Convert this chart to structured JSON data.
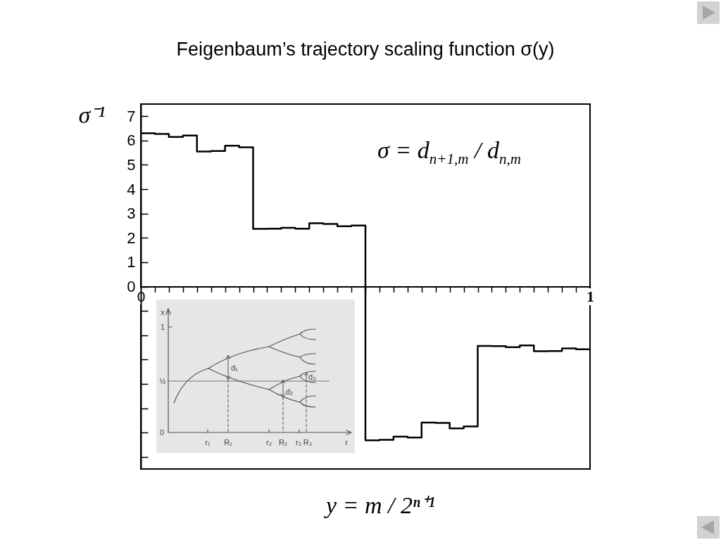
{
  "chart_data": {
    "type": "step",
    "title": "Feigenbaum’s trajectory scaling function σ(y)",
    "xlabel": "y = m / 2ⁿ⁺¹",
    "ylabel": "σ⁻¹",
    "x": [
      0,
      0.03125,
      0.0625,
      0.09375,
      0.125,
      0.15625,
      0.1875,
      0.21875,
      0.25,
      0.28125,
      0.3125,
      0.34375,
      0.375,
      0.40625,
      0.4375,
      0.46875,
      0.5,
      0.53125,
      0.5625,
      0.59375,
      0.625,
      0.65625,
      0.6875,
      0.71875,
      0.75,
      0.78125,
      0.8125,
      0.84375,
      0.875,
      0.90625,
      0.9375,
      0.96875,
      1
    ],
    "series": [
      {
        "color": "#000000",
        "values": [
          6.3,
          6.27,
          6.15,
          6.21,
          5.55,
          5.57,
          5.79,
          5.72,
          2.37,
          2.38,
          2.41,
          2.38,
          2.6,
          2.57,
          2.48,
          2.51,
          -6.32,
          -6.3,
          -6.17,
          -6.21,
          -5.59,
          -5.61,
          -5.83,
          -5.75,
          -2.44,
          -2.45,
          -2.49,
          -2.42,
          -2.66,
          -2.65,
          -2.54,
          -2.58,
          -2.58
        ]
      }
    ],
    "xlim": [
      0,
      1
    ],
    "ylim": [
      -7.5,
      7.5
    ],
    "xticks": [
      0,
      {
        "value": 0.03125,
        "label": null
      },
      {
        "value": 0.0625,
        "label": null
      },
      {
        "value": 0.09375,
        "label": null
      },
      {
        "value": 0.125,
        "label": null
      },
      {
        "value": 0.15625,
        "label": null
      },
      {
        "value": 0.1875,
        "label": null
      },
      {
        "value": 0.21875,
        "label": null
      },
      {
        "value": 0.25,
        "label": null
      },
      {
        "value": 0.28125,
        "label": null
      },
      {
        "value": 0.3125,
        "label": null
      },
      {
        "value": 0.34375,
        "label": null
      },
      {
        "value": 0.375,
        "label": null
      },
      {
        "value": 0.40625,
        "label": null
      },
      {
        "value": 0.4375,
        "label": null
      },
      {
        "value": 0.46875,
        "label": null
      },
      {
        "value": 0.5,
        "label": null
      },
      {
        "value": 0.53125,
        "label": null
      },
      {
        "value": 0.5625,
        "label": null
      },
      {
        "value": 0.59375,
        "label": null
      },
      {
        "value": 0.625,
        "label": null
      },
      {
        "value": 0.65625,
        "label": null
      },
      {
        "value": 0.6875,
        "label": null
      },
      {
        "value": 0.71875,
        "label": null
      },
      {
        "value": 0.75,
        "label": null
      },
      {
        "value": 0.78125,
        "label": null
      },
      {
        "value": 0.8125,
        "label": null
      },
      {
        "value": 0.84375,
        "label": null
      },
      {
        "value": 0.875,
        "label": null
      },
      {
        "value": 0.90625,
        "label": null
      },
      {
        "value": 0.9375,
        "label": null
      },
      {
        "value": 0.96875,
        "label": null
      },
      1
    ],
    "yticks": [
      {
        "value": -7,
        "label": null
      },
      {
        "value": -6,
        "label": null
      },
      {
        "value": -5,
        "label": null
      },
      {
        "value": -4,
        "label": null
      },
      {
        "value": -3,
        "label": null
      },
      {
        "value": -2,
        "label": null
      },
      {
        "value": -1,
        "label": null
      },
      0,
      1,
      2,
      3,
      4,
      5,
      6,
      7
    ],
    "annotations": [
      "σ = d$_{n+1,m}$ / d$_{n,m}$",
      "x",
      "1",
      "½",
      "0",
      "r₁",
      "R₁",
      "r₂",
      "R₂",
      "r₃",
      "R₃",
      "r",
      "d₁",
      "d₂",
      "d₃"
    ]
  }
}
